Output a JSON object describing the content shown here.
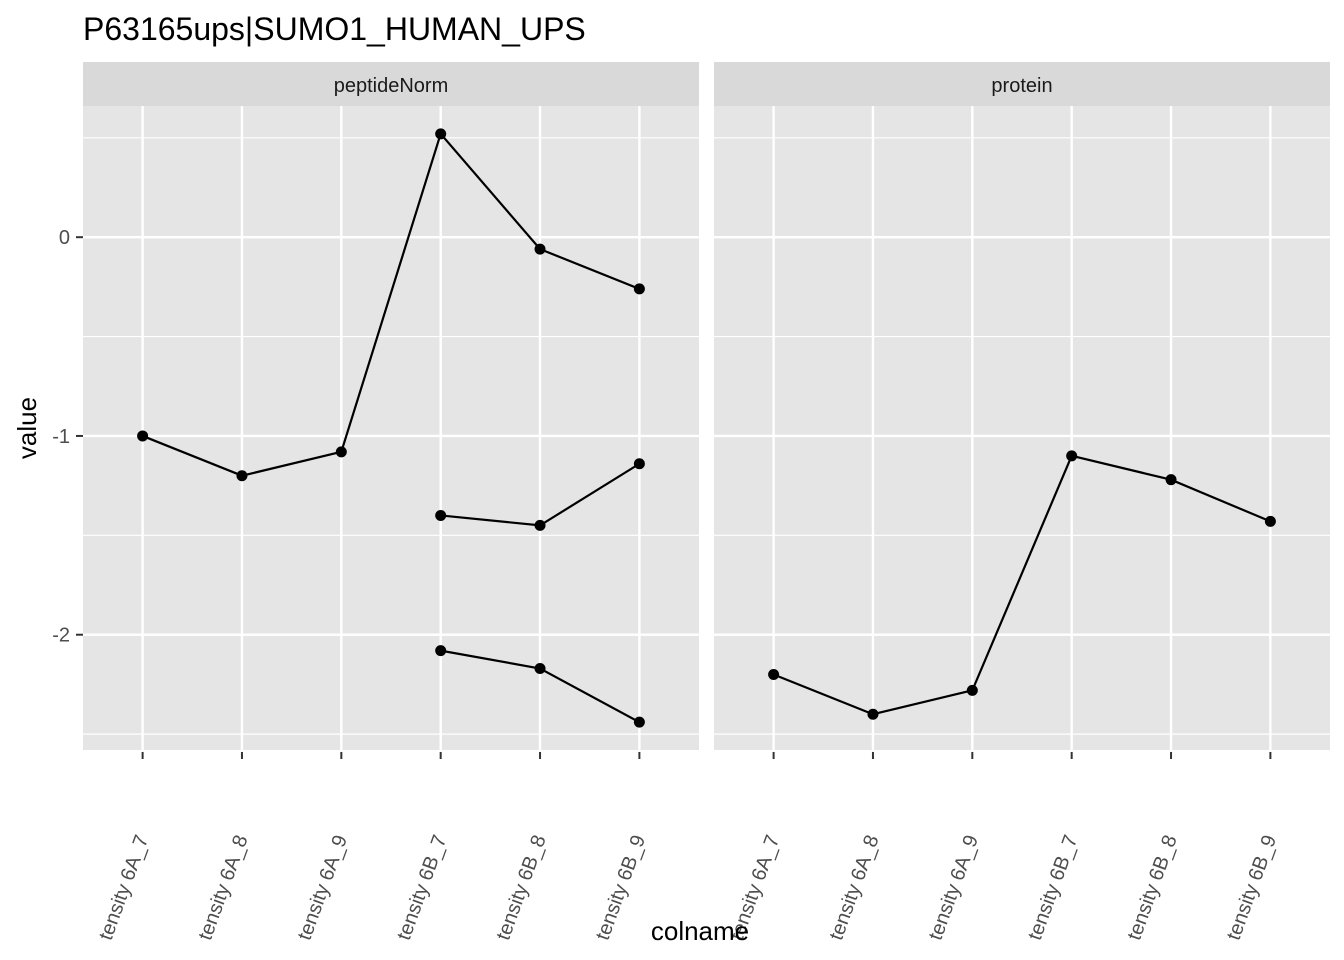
{
  "chart_data": {
    "type": "line",
    "title": "P63165ups|SUMO1_HUMAN_UPS",
    "xlabel": "colname",
    "ylabel": "value",
    "ylim": [
      -2.58,
      0.66
    ],
    "y_ticks": [
      0,
      -1,
      -2
    ],
    "y_tick_labels": [
      "0",
      "-1",
      "-2"
    ],
    "categories": [
      "tensity 6A_7",
      "tensity 6A_8",
      "tensity 6A_9",
      "tensity 6B_7",
      "tensity 6B_8",
      "tensity 6B_9"
    ],
    "grid": true,
    "panels": [
      {
        "name": "peptideNorm",
        "series": [
          {
            "x": [
              "tensity 6A_7",
              "tensity 6A_8",
              "tensity 6A_9",
              "tensity 6B_7",
              "tensity 6B_8",
              "tensity 6B_9"
            ],
            "values": [
              -1.0,
              -1.2,
              -1.08,
              0.52,
              -0.06,
              -0.26
            ]
          },
          {
            "x": [
              "tensity 6B_7",
              "tensity 6B_8",
              "tensity 6B_9"
            ],
            "values": [
              -1.4,
              -1.45,
              -1.14
            ]
          },
          {
            "x": [
              "tensity 6B_7",
              "tensity 6B_8",
              "tensity 6B_9"
            ],
            "values": [
              -2.08,
              -2.17,
              -2.44
            ]
          }
        ]
      },
      {
        "name": "protein",
        "series": [
          {
            "x": [
              "tensity 6A_7",
              "tensity 6A_8",
              "tensity 6A_9",
              "tensity 6B_7",
              "tensity 6B_8",
              "tensity 6B_9"
            ],
            "values": [
              -2.2,
              -2.4,
              -2.28,
              -1.1,
              -1.22,
              -1.43
            ]
          }
        ]
      }
    ],
    "colors": {
      "panel_bg": "#e5e5e5",
      "strip_bg": "#d9d9d9",
      "grid": "#ffffff",
      "line": "#000000"
    }
  }
}
